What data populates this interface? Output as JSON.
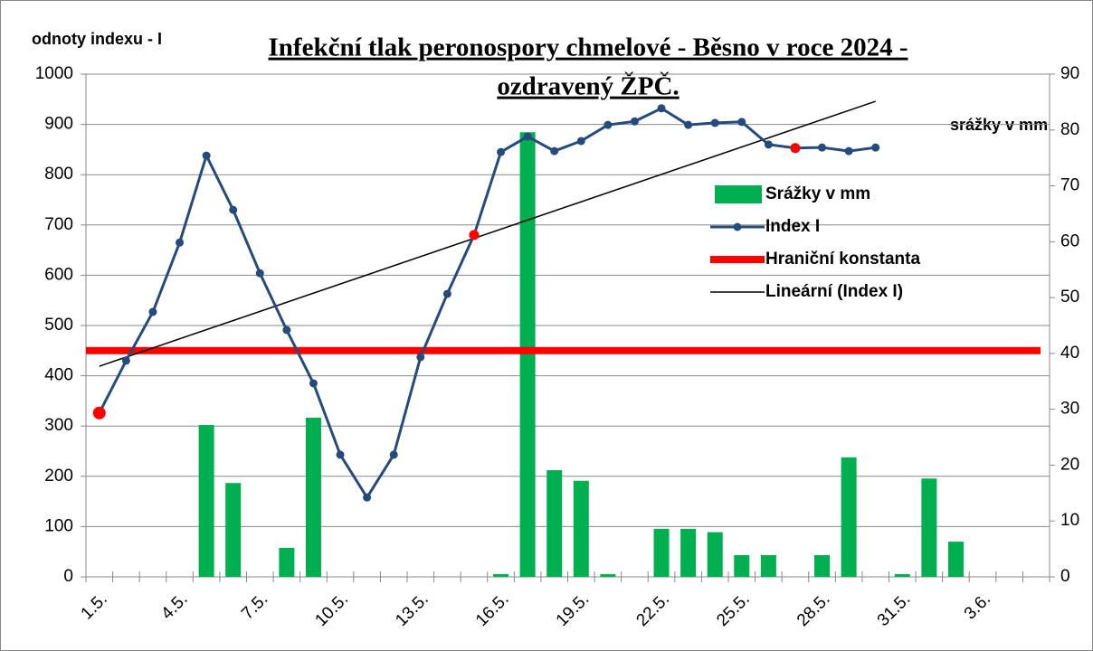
{
  "chart_data": {
    "type": "bar-line",
    "title_lines": [
      "Infekční tlak peronospory chmelové - Běsno v roce 2024 -",
      "ozdravený ŽPČ."
    ],
    "y_label": "odnoty indexu - I",
    "y2_label": "srážky v mm",
    "categories": [
      "1.5.",
      null,
      null,
      "4.5.",
      null,
      null,
      "7.5.",
      null,
      null,
      "10.5.",
      null,
      null,
      "13.5.",
      null,
      null,
      "16.5.",
      null,
      null,
      "19.5.",
      null,
      null,
      "22.5.",
      null,
      null,
      "25.5.",
      null,
      null,
      "28.5.",
      null,
      null,
      "31.5.",
      null,
      null,
      "3.6.",
      null,
      null
    ],
    "ylim": [
      0,
      1000
    ],
    "yticks": [
      0,
      100,
      200,
      300,
      400,
      500,
      600,
      700,
      800,
      900,
      1000
    ],
    "y2lim": [
      0,
      90
    ],
    "y2ticks": [
      0,
      10,
      20,
      30,
      40,
      50,
      60,
      70,
      80,
      90
    ],
    "series": [
      {
        "name": "Srážky v mm",
        "color": "#00b050",
        "axis": "y2",
        "kind": "bar",
        "values": [
          0,
          0,
          0,
          0,
          27.2,
          16.8,
          0,
          5.2,
          28.5,
          0,
          0,
          0,
          0,
          0,
          0,
          0.5,
          79.6,
          19.1,
          17.2,
          0.5,
          0,
          8.6,
          8.6,
          8,
          3.9,
          3.9,
          0,
          3.9,
          21.4,
          0,
          0.5,
          17.6,
          6.3,
          0,
          0,
          0
        ]
      },
      {
        "name": "Index I",
        "color": "#254b7c",
        "kind": "line-markers",
        "highlight_color": "#ff0000",
        "highlighted_indices": [
          0,
          14,
          26
        ],
        "values": [
          326,
          430,
          527,
          665,
          838,
          730,
          604,
          491,
          385,
          243,
          158,
          243,
          437,
          563,
          680,
          845,
          876,
          847,
          867,
          899,
          906,
          932,
          899,
          903,
          905,
          860,
          853,
          854,
          847,
          854,
          null,
          null,
          null,
          null,
          null,
          null
        ]
      },
      {
        "name": "Hraniční konstanta",
        "color": "#ff0000",
        "kind": "thick-line",
        "values": [
          450,
          450,
          450,
          450,
          450,
          450,
          450,
          450,
          450,
          450,
          450,
          450,
          450,
          450,
          450,
          450,
          450,
          450,
          450,
          450,
          450,
          450,
          450,
          450,
          450,
          450,
          450,
          450,
          450,
          450,
          450,
          450,
          450,
          450,
          450,
          450
        ]
      },
      {
        "name": "Lineární (Index I)",
        "color": "#000000",
        "kind": "trend",
        "x": [
          0,
          29
        ],
        "values": [
          419,
          946
        ]
      }
    ]
  }
}
